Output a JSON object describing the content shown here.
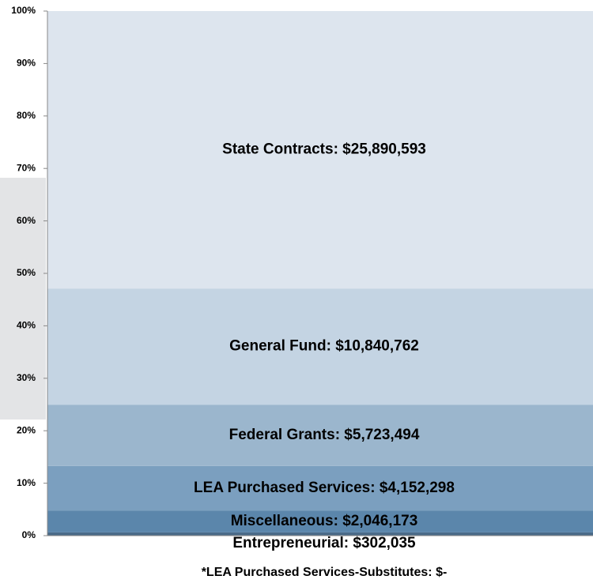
{
  "chart_data": {
    "type": "stacked-percent-bar",
    "ylim": [
      0,
      100
    ],
    "yticks": [
      {
        "value": 0,
        "label": "0%"
      },
      {
        "value": 10,
        "label": "10%"
      },
      {
        "value": 20,
        "label": "20%"
      },
      {
        "value": 30,
        "label": "30%"
      },
      {
        "value": 40,
        "label": "40%"
      },
      {
        "value": 50,
        "label": "50%"
      },
      {
        "value": 60,
        "label": "60%"
      },
      {
        "value": 70,
        "label": "70%"
      },
      {
        "value": 80,
        "label": "80%"
      },
      {
        "value": 90,
        "label": "90%"
      },
      {
        "value": 100,
        "label": "100%"
      }
    ],
    "series": [
      {
        "label": "Entrepreneurial:  $302,035",
        "color": "#4a6a88",
        "values": [
          302035
        ]
      },
      {
        "label": "Miscellaneous:  $2,046,173",
        "color": "#5b86ab",
        "values": [
          2046173
        ]
      },
      {
        "label": "LEA Purchased Services:  $4,152,298",
        "color": "#7b9fbf",
        "values": [
          4152298
        ]
      },
      {
        "label": "Federal Grants:  $5,723,494",
        "color": "#9bb6cd",
        "values": [
          5723494
        ]
      },
      {
        "label": "General Fund:  $10,840,762",
        "color": "#c4d4e3",
        "values": [
          10840762
        ]
      },
      {
        "label": "State Contracts:  $25,890,593",
        "color": "#dde5ee",
        "values": [
          25890593
        ]
      }
    ],
    "footnote": "*LEA Purchased Services-Substitutes: $-"
  }
}
